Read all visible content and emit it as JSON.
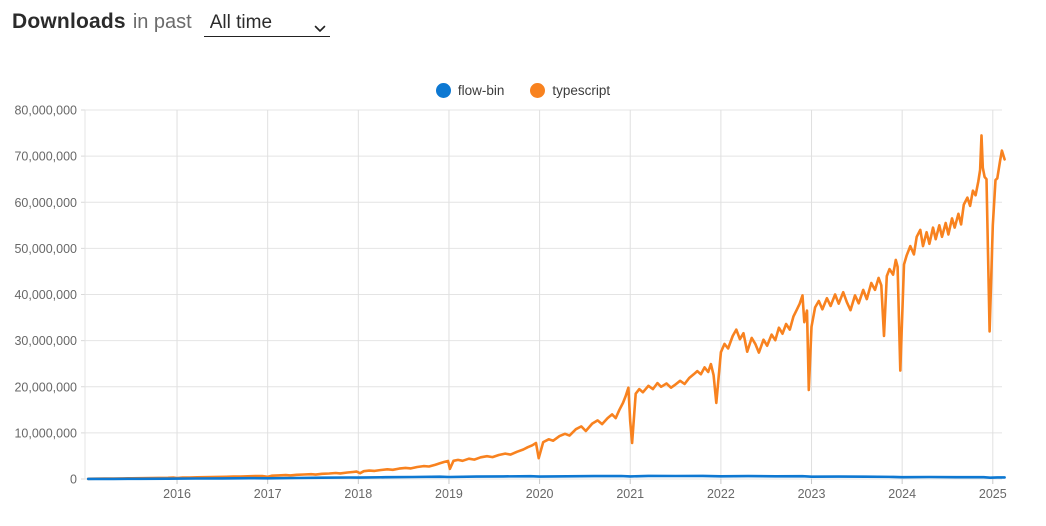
{
  "header": {
    "title_bold": "Downloads",
    "title_rest": "in past",
    "range_select": {
      "value": "All time"
    }
  },
  "legend": [
    {
      "label": "flow-bin",
      "color": "#0d78d2"
    },
    {
      "label": "typescript",
      "color": "#f8821f"
    }
  ],
  "chart_data": {
    "type": "line",
    "title": "Downloads in past All time",
    "xlabel": "",
    "ylabel": "",
    "grid": true,
    "legend_position": "top-center",
    "values_unit": "millions of weekly downloads",
    "xlim": [
      2015.0,
      2025.15
    ],
    "ylim": [
      0,
      80
    ],
    "x_ticks": [
      2016,
      2017,
      2018,
      2019,
      2020,
      2021,
      2022,
      2023,
      2024,
      2025
    ],
    "y_ticks": [
      0,
      10,
      20,
      30,
      40,
      50,
      60,
      70,
      80
    ],
    "y_tick_labels": [
      "0",
      "10,000,000",
      "20,000,000",
      "30,000,000",
      "40,000,000",
      "50,000,000",
      "60,000,000",
      "70,000,000",
      "80,000,000"
    ],
    "draw_order": [
      "typescript",
      "flow-bin"
    ],
    "series": [
      {
        "name": "flow-bin",
        "color": "#0d78d2",
        "points": [
          [
            2015.02,
            0.02
          ],
          [
            2015.3,
            0.03
          ],
          [
            2015.6,
            0.05
          ],
          [
            2015.9,
            0.07
          ],
          [
            2016.2,
            0.1
          ],
          [
            2016.5,
            0.13
          ],
          [
            2016.8,
            0.17
          ],
          [
            2017.0,
            0.16
          ],
          [
            2017.3,
            0.22
          ],
          [
            2017.6,
            0.28
          ],
          [
            2017.9,
            0.33
          ],
          [
            2018.0,
            0.3
          ],
          [
            2018.3,
            0.38
          ],
          [
            2018.6,
            0.44
          ],
          [
            2018.9,
            0.5
          ],
          [
            2019.0,
            0.44
          ],
          [
            2019.3,
            0.52
          ],
          [
            2019.6,
            0.56
          ],
          [
            2019.9,
            0.6
          ],
          [
            2020.0,
            0.52
          ],
          [
            2020.3,
            0.58
          ],
          [
            2020.6,
            0.62
          ],
          [
            2020.9,
            0.66
          ],
          [
            2021.0,
            0.56
          ],
          [
            2021.2,
            0.68
          ],
          [
            2021.5,
            0.64
          ],
          [
            2021.8,
            0.68
          ],
          [
            2022.0,
            0.58
          ],
          [
            2022.3,
            0.62
          ],
          [
            2022.6,
            0.58
          ],
          [
            2022.9,
            0.6
          ],
          [
            2023.0,
            0.5
          ],
          [
            2023.3,
            0.52
          ],
          [
            2023.6,
            0.5
          ],
          [
            2023.9,
            0.46
          ],
          [
            2024.0,
            0.4
          ],
          [
            2024.3,
            0.44
          ],
          [
            2024.6,
            0.4
          ],
          [
            2024.9,
            0.38
          ],
          [
            2024.97,
            0.28
          ],
          [
            2025.05,
            0.34
          ],
          [
            2025.13,
            0.35
          ]
        ]
      },
      {
        "name": "typescript",
        "color": "#f8821f",
        "points": [
          [
            2015.02,
            0.05
          ],
          [
            2015.1,
            0.06
          ],
          [
            2015.2,
            0.08
          ],
          [
            2015.3,
            0.1
          ],
          [
            2015.4,
            0.12
          ],
          [
            2015.5,
            0.15
          ],
          [
            2015.6,
            0.18
          ],
          [
            2015.7,
            0.21
          ],
          [
            2015.8,
            0.24
          ],
          [
            2015.9,
            0.27
          ],
          [
            2015.96,
            0.3
          ],
          [
            2016.0,
            0.22
          ],
          [
            2016.06,
            0.3
          ],
          [
            2016.14,
            0.33
          ],
          [
            2016.22,
            0.36
          ],
          [
            2016.3,
            0.39
          ],
          [
            2016.38,
            0.42
          ],
          [
            2016.46,
            0.45
          ],
          [
            2016.54,
            0.48
          ],
          [
            2016.62,
            0.52
          ],
          [
            2016.7,
            0.55
          ],
          [
            2016.78,
            0.58
          ],
          [
            2016.86,
            0.62
          ],
          [
            2016.94,
            0.66
          ],
          [
            2017.0,
            0.48
          ],
          [
            2017.05,
            0.72
          ],
          [
            2017.12,
            0.78
          ],
          [
            2017.2,
            0.84
          ],
          [
            2017.25,
            0.78
          ],
          [
            2017.32,
            0.9
          ],
          [
            2017.4,
            0.97
          ],
          [
            2017.48,
            1.04
          ],
          [
            2017.53,
            0.96
          ],
          [
            2017.6,
            1.12
          ],
          [
            2017.68,
            1.2
          ],
          [
            2017.75,
            1.3
          ],
          [
            2017.8,
            1.22
          ],
          [
            2017.88,
            1.42
          ],
          [
            2017.94,
            1.52
          ],
          [
            2017.98,
            1.6
          ],
          [
            2018.02,
            1.25
          ],
          [
            2018.06,
            1.7
          ],
          [
            2018.12,
            1.82
          ],
          [
            2018.18,
            1.75
          ],
          [
            2018.25,
            1.95
          ],
          [
            2018.32,
            2.1
          ],
          [
            2018.38,
            2.0
          ],
          [
            2018.45,
            2.25
          ],
          [
            2018.52,
            2.4
          ],
          [
            2018.58,
            2.3
          ],
          [
            2018.65,
            2.6
          ],
          [
            2018.72,
            2.8
          ],
          [
            2018.78,
            2.7
          ],
          [
            2018.85,
            3.1
          ],
          [
            2018.9,
            3.4
          ],
          [
            2018.95,
            3.7
          ],
          [
            2018.99,
            3.9
          ],
          [
            2019.01,
            2.2
          ],
          [
            2019.05,
            3.95
          ],
          [
            2019.1,
            4.15
          ],
          [
            2019.15,
            3.95
          ],
          [
            2019.22,
            4.4
          ],
          [
            2019.28,
            4.2
          ],
          [
            2019.35,
            4.7
          ],
          [
            2019.42,
            4.95
          ],
          [
            2019.48,
            4.75
          ],
          [
            2019.55,
            5.2
          ],
          [
            2019.62,
            5.5
          ],
          [
            2019.68,
            5.3
          ],
          [
            2019.75,
            5.9
          ],
          [
            2019.82,
            6.4
          ],
          [
            2019.87,
            6.9
          ],
          [
            2019.92,
            7.3
          ],
          [
            2019.96,
            7.8
          ],
          [
            2019.99,
            4.5
          ],
          [
            2020.04,
            8.0
          ],
          [
            2020.1,
            8.6
          ],
          [
            2020.15,
            8.3
          ],
          [
            2020.22,
            9.3
          ],
          [
            2020.28,
            9.8
          ],
          [
            2020.33,
            9.4
          ],
          [
            2020.4,
            10.8
          ],
          [
            2020.46,
            11.4
          ],
          [
            2020.51,
            10.4
          ],
          [
            2020.58,
            12.0
          ],
          [
            2020.64,
            12.7
          ],
          [
            2020.69,
            11.9
          ],
          [
            2020.75,
            13.2
          ],
          [
            2020.8,
            14.0
          ],
          [
            2020.84,
            13.2
          ],
          [
            2020.88,
            15.0
          ],
          [
            2020.92,
            16.5
          ],
          [
            2020.95,
            18.0
          ],
          [
            2020.98,
            19.8
          ],
          [
            2021.0,
            12.5
          ],
          [
            2021.02,
            7.8
          ],
          [
            2021.06,
            18.5
          ],
          [
            2021.1,
            19.5
          ],
          [
            2021.14,
            18.8
          ],
          [
            2021.2,
            20.2
          ],
          [
            2021.25,
            19.5
          ],
          [
            2021.3,
            20.8
          ],
          [
            2021.34,
            20.0
          ],
          [
            2021.4,
            20.7
          ],
          [
            2021.45,
            19.8
          ],
          [
            2021.5,
            20.5
          ],
          [
            2021.55,
            21.3
          ],
          [
            2021.6,
            20.6
          ],
          [
            2021.65,
            21.9
          ],
          [
            2021.7,
            22.7
          ],
          [
            2021.74,
            23.4
          ],
          [
            2021.78,
            22.7
          ],
          [
            2021.82,
            24.2
          ],
          [
            2021.86,
            23.2
          ],
          [
            2021.89,
            24.9
          ],
          [
            2021.92,
            22.5
          ],
          [
            2021.95,
            16.5
          ],
          [
            2022.0,
            27.5
          ],
          [
            2022.04,
            29.3
          ],
          [
            2022.08,
            28.3
          ],
          [
            2022.13,
            31.0
          ],
          [
            2022.17,
            32.4
          ],
          [
            2022.21,
            30.3
          ],
          [
            2022.25,
            31.6
          ],
          [
            2022.29,
            27.6
          ],
          [
            2022.34,
            30.6
          ],
          [
            2022.38,
            29.3
          ],
          [
            2022.42,
            27.4
          ],
          [
            2022.47,
            30.2
          ],
          [
            2022.51,
            28.9
          ],
          [
            2022.56,
            31.3
          ],
          [
            2022.6,
            30.1
          ],
          [
            2022.64,
            32.8
          ],
          [
            2022.68,
            31.5
          ],
          [
            2022.72,
            33.6
          ],
          [
            2022.76,
            32.4
          ],
          [
            2022.8,
            35.2
          ],
          [
            2022.84,
            36.8
          ],
          [
            2022.87,
            38.0
          ],
          [
            2022.9,
            39.8
          ],
          [
            2022.92,
            34.0
          ],
          [
            2022.95,
            36.5
          ],
          [
            2022.97,
            19.3
          ],
          [
            2023.0,
            33.0
          ],
          [
            2023.04,
            37.2
          ],
          [
            2023.08,
            38.6
          ],
          [
            2023.12,
            36.8
          ],
          [
            2023.17,
            39.2
          ],
          [
            2023.21,
            37.5
          ],
          [
            2023.26,
            40.0
          ],
          [
            2023.3,
            38.0
          ],
          [
            2023.35,
            40.5
          ],
          [
            2023.39,
            38.3
          ],
          [
            2023.43,
            36.6
          ],
          [
            2023.48,
            39.8
          ],
          [
            2023.52,
            38.1
          ],
          [
            2023.57,
            41.0
          ],
          [
            2023.61,
            39.0
          ],
          [
            2023.66,
            42.5
          ],
          [
            2023.7,
            41.0
          ],
          [
            2023.74,
            43.6
          ],
          [
            2023.77,
            42.0
          ],
          [
            2023.8,
            31.0
          ],
          [
            2023.83,
            44.0
          ],
          [
            2023.86,
            45.5
          ],
          [
            2023.9,
            44.3
          ],
          [
            2023.93,
            47.5
          ],
          [
            2023.95,
            46.0
          ],
          [
            2023.98,
            23.5
          ],
          [
            2024.02,
            46.5
          ],
          [
            2024.05,
            48.5
          ],
          [
            2024.09,
            50.5
          ],
          [
            2024.13,
            48.7
          ],
          [
            2024.16,
            52.5
          ],
          [
            2024.2,
            54.0
          ],
          [
            2024.23,
            50.5
          ],
          [
            2024.27,
            53.5
          ],
          [
            2024.3,
            51.0
          ],
          [
            2024.34,
            54.5
          ],
          [
            2024.37,
            52.0
          ],
          [
            2024.41,
            55.0
          ],
          [
            2024.44,
            52.5
          ],
          [
            2024.48,
            55.5
          ],
          [
            2024.51,
            53.0
          ],
          [
            2024.55,
            56.5
          ],
          [
            2024.58,
            54.5
          ],
          [
            2024.62,
            57.5
          ],
          [
            2024.65,
            55.2
          ],
          [
            2024.68,
            59.5
          ],
          [
            2024.72,
            61.0
          ],
          [
            2024.75,
            59.2
          ],
          [
            2024.78,
            62.5
          ],
          [
            2024.81,
            61.5
          ],
          [
            2024.84,
            64.5
          ],
          [
            2024.86,
            67.0
          ],
          [
            2024.875,
            74.5
          ],
          [
            2024.89,
            67.5
          ],
          [
            2024.91,
            65.5
          ],
          [
            2024.93,
            65.0
          ],
          [
            2024.965,
            32.0
          ],
          [
            2025.0,
            55.0
          ],
          [
            2025.03,
            64.8
          ],
          [
            2025.05,
            65.2
          ],
          [
            2025.08,
            69.0
          ],
          [
            2025.1,
            71.2
          ],
          [
            2025.13,
            69.3
          ]
        ]
      }
    ]
  }
}
